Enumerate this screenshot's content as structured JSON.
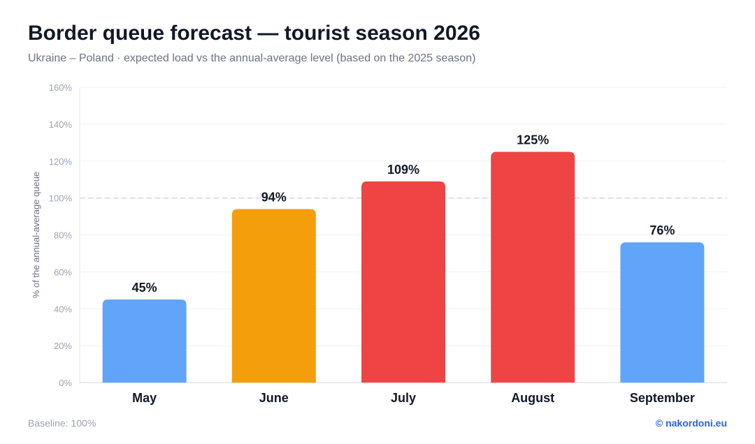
{
  "header": {
    "title": "Border queue forecast — tourist season 2026",
    "subtitle": "Ukraine – Poland · expected load vs the annual-average level (based on the 2025 season)"
  },
  "footer": {
    "baseline_note": "Baseline: 100%",
    "source": "© nakordoni.eu"
  },
  "chart_data": {
    "type": "bar",
    "title": "Border queue forecast — tourist season 2026",
    "subtitle": "Ukraine – Poland · expected load vs the annual-average level (based on the 2025 season)",
    "xlabel": "",
    "ylabel": "% of the annual-average queue",
    "ylim": [
      0,
      160
    ],
    "yticks": [
      0,
      20,
      40,
      60,
      80,
      100,
      120,
      140,
      160
    ],
    "ytick_labels": [
      "0%",
      "20%",
      "40%",
      "60%",
      "80%",
      "100%",
      "120%",
      "140%",
      "160%"
    ],
    "categories": [
      "May",
      "June",
      "July",
      "August",
      "September"
    ],
    "values": [
      45,
      94,
      109,
      125,
      76
    ],
    "value_labels": [
      "45%",
      "94%",
      "109%",
      "125%",
      "76%"
    ],
    "bar_colors": [
      "#60a5fa",
      "#f59e0b",
      "#ef4444",
      "#ef4444",
      "#60a5fa"
    ],
    "reference_line": 100,
    "grid": true
  }
}
